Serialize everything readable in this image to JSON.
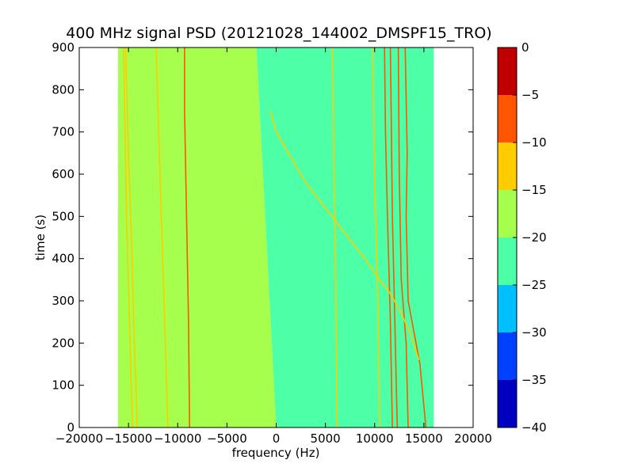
{
  "chart_data": {
    "type": "heatmap",
    "title": "400 MHz signal PSD (20121028_144002_DMSPF15_TRO)",
    "xlabel": "frequency (Hz)",
    "ylabel": "time (s)",
    "xlim": [
      -20000,
      20000
    ],
    "ylim": [
      0,
      900
    ],
    "x_ticks": [
      -20000,
      -15000,
      -10000,
      -5000,
      0,
      5000,
      10000,
      15000,
      20000
    ],
    "x_tick_labels": [
      "−20000",
      "−15000",
      "−10000",
      "−5000",
      "0",
      "5000",
      "10000",
      "15000",
      "20000"
    ],
    "y_ticks": [
      0,
      100,
      200,
      300,
      400,
      500,
      600,
      700,
      800,
      900
    ],
    "y_tick_labels": [
      "0",
      "100",
      "200",
      "300",
      "400",
      "500",
      "600",
      "700",
      "800",
      "900"
    ],
    "data_extent": {
      "x": [
        -16000,
        16000
      ],
      "y": [
        0,
        900
      ]
    },
    "colorbar": {
      "levels": [
        -40,
        -35,
        -30,
        -25,
        -20,
        -15,
        -10,
        -5,
        0
      ],
      "tick_labels": [
        "−40",
        "−35",
        "−30",
        "−25",
        "−20",
        "−15",
        "−10",
        "−5",
        "0"
      ],
      "colors": [
        "#0000c0",
        "#0040ff",
        "#00bfff",
        "#4dffa6",
        "#a6ff4d",
        "#ffcc00",
        "#ff5500",
        "#c00000"
      ]
    },
    "background_regions": [
      {
        "name": "low-band",
        "level": -17.5,
        "x_start_at_time": [
          [
            0,
            -16000
          ],
          [
            900,
            -16000
          ]
        ],
        "x_end_at_time": [
          [
            0,
            0
          ],
          [
            450,
            -1000
          ],
          [
            900,
            -2000
          ]
        ]
      },
      {
        "name": "mid-band",
        "level": -22.5,
        "x_start_at_time": [
          [
            0,
            0
          ],
          [
            450,
            -1000
          ],
          [
            900,
            -2000
          ]
        ],
        "x_end_at_time": [
          [
            0,
            16000
          ],
          [
            900,
            16000
          ]
        ]
      }
    ],
    "series": [
      {
        "level": -12.5,
        "points": [
          [
            -14100,
            0
          ],
          [
            -14400,
            200
          ],
          [
            -14700,
            450
          ],
          [
            -15000,
            650
          ],
          [
            -15300,
            900
          ]
        ]
      },
      {
        "level": -12.5,
        "points": [
          [
            -14600,
            0
          ],
          [
            -14900,
            250
          ],
          [
            -15200,
            500
          ],
          [
            -15500,
            900
          ]
        ]
      },
      {
        "level": -12.5,
        "points": [
          [
            -11000,
            0
          ],
          [
            -11400,
            300
          ],
          [
            -11800,
            600
          ],
          [
            -12200,
            900
          ]
        ]
      },
      {
        "level": -7.5,
        "points": [
          [
            -8800,
            0
          ],
          [
            -8900,
            250
          ],
          [
            -9100,
            500
          ],
          [
            -9300,
            750
          ],
          [
            -9300,
            900
          ]
        ]
      },
      {
        "level": -17.5,
        "points": [
          [
            -16000,
            0
          ],
          [
            -16000,
            900
          ]
        ]
      },
      {
        "level": -12.5,
        "points": [
          [
            6200,
            0
          ],
          [
            6000,
            450
          ],
          [
            5800,
            700
          ],
          [
            5700,
            900
          ]
        ]
      },
      {
        "level": -12.5,
        "points": [
          [
            10500,
            0
          ],
          [
            10300,
            300
          ],
          [
            10000,
            600
          ],
          [
            9800,
            900
          ]
        ]
      },
      {
        "level": -7.5,
        "points": [
          [
            11800,
            0
          ],
          [
            11600,
            250
          ],
          [
            11300,
            500
          ],
          [
            11100,
            700
          ],
          [
            11000,
            900
          ]
        ]
      },
      {
        "level": -7.5,
        "points": [
          [
            12300,
            0
          ],
          [
            12000,
            300
          ],
          [
            11800,
            500
          ],
          [
            11700,
            700
          ],
          [
            11600,
            900
          ]
        ]
      },
      {
        "level": -7.5,
        "points": [
          [
            13400,
            0
          ],
          [
            13200,
            200
          ],
          [
            12700,
            350
          ],
          [
            12500,
            600
          ],
          [
            12400,
            900
          ]
        ]
      },
      {
        "level": -7.5,
        "points": [
          [
            15200,
            0
          ],
          [
            14600,
            150
          ],
          [
            13400,
            300
          ],
          [
            13200,
            500
          ],
          [
            13300,
            650
          ],
          [
            13100,
            900
          ]
        ]
      },
      {
        "level": -12.5,
        "points": [
          [
            -600,
            750
          ],
          [
            0,
            700
          ],
          [
            1500,
            640
          ],
          [
            3000,
            580
          ],
          [
            5000,
            520
          ],
          [
            7000,
            460
          ],
          [
            9000,
            400
          ],
          [
            10500,
            350
          ],
          [
            11500,
            320
          ],
          [
            12500,
            280
          ],
          [
            13500,
            230
          ],
          [
            14500,
            160
          ]
        ]
      }
    ]
  }
}
